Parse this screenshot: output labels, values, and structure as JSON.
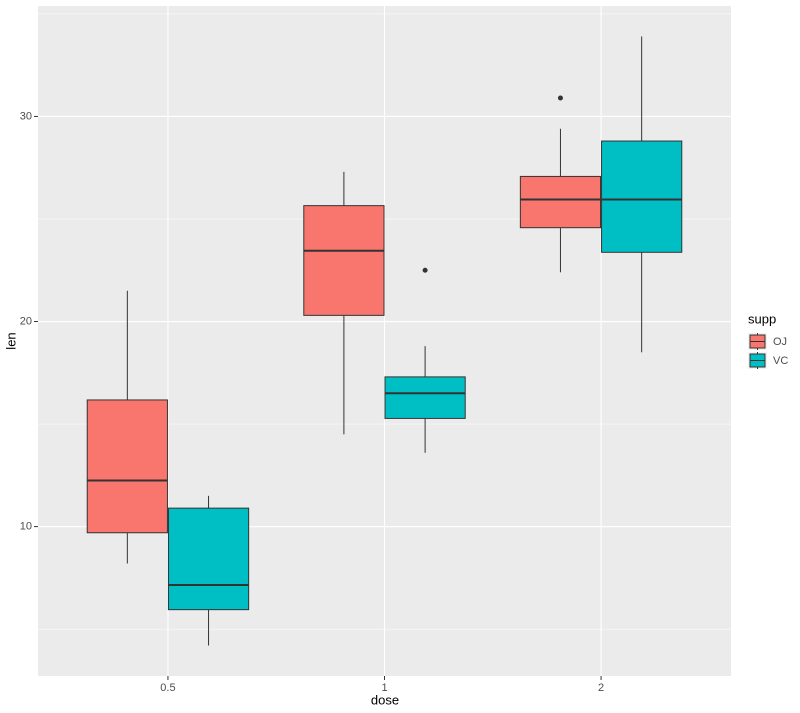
{
  "chart_data": {
    "type": "box",
    "x_label": "dose",
    "y_label": "len",
    "categories": [
      "0.5",
      "1",
      "2"
    ],
    "legend_title": "supp",
    "series": [
      {
        "name": "OJ",
        "color": "#F8766D",
        "values": [
          {
            "min": 8.2,
            "q1": 9.7,
            "median": 12.25,
            "q3": 16.175,
            "max": 21.5
          },
          {
            "min": 14.5,
            "q1": 20.3,
            "median": 23.45,
            "q3": 25.65,
            "max": 27.3
          },
          {
            "min": 22.4,
            "q1": 24.575,
            "median": 25.95,
            "q3": 27.075,
            "max": 29.4,
            "outliers": [
              30.9
            ]
          }
        ]
      },
      {
        "name": "VC",
        "color": "#00BFC4",
        "values": [
          {
            "min": 4.2,
            "q1": 5.95,
            "median": 7.15,
            "q3": 10.9,
            "max": 11.5
          },
          {
            "min": 13.6,
            "q1": 15.275,
            "median": 16.5,
            "q3": 17.3,
            "max": 18.8,
            "outliers": [
              22.5
            ]
          },
          {
            "min": 18.5,
            "q1": 23.375,
            "median": 25.95,
            "q3": 28.8,
            "max": 33.9
          }
        ]
      }
    ],
    "ylim": [
      2.715,
      35.385
    ],
    "yticks": [
      10,
      20,
      30
    ],
    "y_minor_ticks": [
      5,
      15,
      25,
      35
    ],
    "grid": true,
    "legend_position": "right"
  }
}
